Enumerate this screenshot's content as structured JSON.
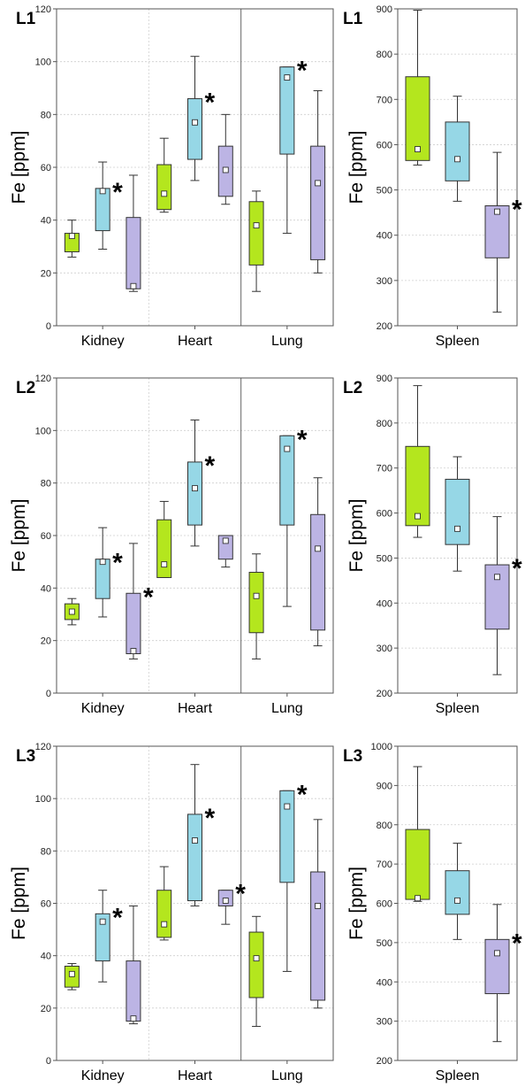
{
  "colors": {
    "green": "#b4e61e",
    "blue": "#96d7e6",
    "purple": "#bcb4e4"
  },
  "chart_data": [
    {
      "panel": "L1",
      "type": "box",
      "ylabel": "Fe [ppm]",
      "ylim": [
        0,
        120
      ],
      "yticks": [
        "0",
        "20",
        "40",
        "60",
        "80",
        "100",
        "120"
      ],
      "categories": [
        "Kidney",
        "Heart",
        "Lung"
      ],
      "grid": true,
      "boxes": [
        {
          "category": "Kidney",
          "color": "green",
          "min": 26,
          "q1": 28,
          "median": 34,
          "q3": 35,
          "max": 40,
          "star": false
        },
        {
          "category": "Kidney",
          "color": "blue",
          "min": 29,
          "q1": 36,
          "median": 51,
          "q3": 52,
          "max": 62,
          "star": true
        },
        {
          "category": "Kidney",
          "color": "purple",
          "min": 13,
          "q1": 14,
          "median": 15,
          "q3": 41,
          "max": 57,
          "star": false
        },
        {
          "category": "Heart",
          "color": "green",
          "min": 43,
          "q1": 44,
          "median": 50,
          "q3": 61,
          "max": 71,
          "star": false
        },
        {
          "category": "Heart",
          "color": "blue",
          "min": 55,
          "q1": 63,
          "median": 77,
          "q3": 86,
          "max": 102,
          "star": true
        },
        {
          "category": "Heart",
          "color": "purple",
          "min": 46,
          "q1": 49,
          "median": 59,
          "q3": 68,
          "max": 80,
          "star": false
        },
        {
          "category": "Lung",
          "color": "green",
          "min": 13,
          "q1": 23,
          "median": 38,
          "q3": 47,
          "max": 51,
          "star": false
        },
        {
          "category": "Lung",
          "color": "blue",
          "min": 35,
          "q1": 65,
          "median": 94,
          "q3": 98,
          "max": 98,
          "star": true
        },
        {
          "category": "Lung",
          "color": "purple",
          "min": 20,
          "q1": 25,
          "median": 54,
          "q3": 68,
          "max": 89,
          "star": false
        }
      ]
    },
    {
      "panel": "L1",
      "type": "box",
      "ylabel": "Fe [ppm]",
      "ylim": [
        200,
        900
      ],
      "yticks": [
        "200",
        "300",
        "400",
        "500",
        "600",
        "700",
        "800",
        "900"
      ],
      "categories": [
        "Spleen"
      ],
      "grid": true,
      "boxes": [
        {
          "category": "Spleen",
          "color": "green",
          "min": 555,
          "q1": 565,
          "median": 590,
          "q3": 750,
          "max": 897,
          "star": false
        },
        {
          "category": "Spleen",
          "color": "blue",
          "min": 475,
          "q1": 520,
          "median": 568,
          "q3": 650,
          "max": 707,
          "star": false
        },
        {
          "category": "Spleen",
          "color": "purple",
          "min": 230,
          "q1": 350,
          "median": 452,
          "q3": 465,
          "max": 583,
          "star": true
        }
      ]
    },
    {
      "panel": "L2",
      "type": "box",
      "ylabel": "Fe [ppm]",
      "ylim": [
        0,
        120
      ],
      "yticks": [
        "0",
        "20",
        "40",
        "60",
        "80",
        "100",
        "120"
      ],
      "categories": [
        "Kidney",
        "Heart",
        "Lung"
      ],
      "grid": true,
      "boxes": [
        {
          "category": "Kidney",
          "color": "green",
          "min": 26,
          "q1": 28,
          "median": 31,
          "q3": 34,
          "max": 36,
          "star": false
        },
        {
          "category": "Kidney",
          "color": "blue",
          "min": 29,
          "q1": 36,
          "median": 50,
          "q3": 51,
          "max": 63,
          "star": true
        },
        {
          "category": "Kidney",
          "color": "purple",
          "min": 13,
          "q1": 15,
          "median": 16,
          "q3": 38,
          "max": 57,
          "star": true
        },
        {
          "category": "Heart",
          "color": "green",
          "min": 44,
          "q1": 44,
          "median": 49,
          "q3": 66,
          "max": 73,
          "star": false
        },
        {
          "category": "Heart",
          "color": "blue",
          "min": 56,
          "q1": 64,
          "median": 78,
          "q3": 88,
          "max": 104,
          "star": true
        },
        {
          "category": "Heart",
          "color": "purple",
          "min": 48,
          "q1": 51,
          "median": 58,
          "q3": 60,
          "max": 60,
          "star": false
        },
        {
          "category": "Lung",
          "color": "green",
          "min": 13,
          "q1": 23,
          "median": 37,
          "q3": 46,
          "max": 53,
          "star": false
        },
        {
          "category": "Lung",
          "color": "blue",
          "min": 33,
          "q1": 64,
          "median": 93,
          "q3": 98,
          "max": 98,
          "star": true
        },
        {
          "category": "Lung",
          "color": "purple",
          "min": 18,
          "q1": 24,
          "median": 55,
          "q3": 68,
          "max": 82,
          "star": false
        }
      ]
    },
    {
      "panel": "L2",
      "type": "box",
      "ylabel": "Fe [ppm]",
      "ylim": [
        200,
        900
      ],
      "yticks": [
        "200",
        "300",
        "400",
        "500",
        "600",
        "700",
        "800",
        "900"
      ],
      "categories": [
        "Spleen"
      ],
      "grid": true,
      "boxes": [
        {
          "category": "Spleen",
          "color": "green",
          "min": 546,
          "q1": 572,
          "median": 593,
          "q3": 748,
          "max": 883,
          "star": false
        },
        {
          "category": "Spleen",
          "color": "blue",
          "min": 471,
          "q1": 530,
          "median": 565,
          "q3": 675,
          "max": 725,
          "star": false
        },
        {
          "category": "Spleen",
          "color": "purple",
          "min": 241,
          "q1": 342,
          "median": 458,
          "q3": 485,
          "max": 592,
          "star": true
        }
      ]
    },
    {
      "panel": "L3",
      "type": "box",
      "ylabel": "Fe [ppm]",
      "ylim": [
        0,
        120
      ],
      "yticks": [
        "0",
        "20",
        "40",
        "60",
        "80",
        "100",
        "120"
      ],
      "categories": [
        "Kidney",
        "Heart",
        "Lung"
      ],
      "grid": true,
      "boxes": [
        {
          "category": "Kidney",
          "color": "green",
          "min": 27,
          "q1": 28,
          "median": 33,
          "q3": 36,
          "max": 37,
          "star": false
        },
        {
          "category": "Kidney",
          "color": "blue",
          "min": 30,
          "q1": 38,
          "median": 53,
          "q3": 56,
          "max": 65,
          "star": true
        },
        {
          "category": "Kidney",
          "color": "purple",
          "min": 14,
          "q1": 15,
          "median": 16,
          "q3": 38,
          "max": 59,
          "star": false
        },
        {
          "category": "Heart",
          "color": "green",
          "min": 46,
          "q1": 47,
          "median": 52,
          "q3": 65,
          "max": 74,
          "star": false
        },
        {
          "category": "Heart",
          "color": "blue",
          "min": 59,
          "q1": 61,
          "median": 84,
          "q3": 94,
          "max": 113,
          "star": true
        },
        {
          "category": "Heart",
          "color": "purple",
          "min": 52,
          "q1": 59,
          "median": 61,
          "q3": 65,
          "max": 65,
          "star": true
        },
        {
          "category": "Lung",
          "color": "green",
          "min": 13,
          "q1": 24,
          "median": 39,
          "q3": 49,
          "max": 55,
          "star": false
        },
        {
          "category": "Lung",
          "color": "blue",
          "min": 34,
          "q1": 68,
          "median": 97,
          "q3": 103,
          "max": 103,
          "star": true
        },
        {
          "category": "Lung",
          "color": "purple",
          "min": 20,
          "q1": 23,
          "median": 59,
          "q3": 72,
          "max": 92,
          "star": false
        }
      ]
    },
    {
      "panel": "L3",
      "type": "box",
      "ylabel": "Fe [ppm]",
      "ylim": [
        200,
        1000
      ],
      "yticks": [
        "200",
        "300",
        "400",
        "500",
        "600",
        "700",
        "800",
        "900",
        "1000"
      ],
      "categories": [
        "Spleen"
      ],
      "grid": true,
      "boxes": [
        {
          "category": "Spleen",
          "color": "green",
          "min": 605,
          "q1": 610,
          "median": 613,
          "q3": 788,
          "max": 948,
          "star": false
        },
        {
          "category": "Spleen",
          "color": "blue",
          "min": 508,
          "q1": 572,
          "median": 607,
          "q3": 683,
          "max": 753,
          "star": false
        },
        {
          "category": "Spleen",
          "color": "purple",
          "min": 248,
          "q1": 370,
          "median": 473,
          "q3": 508,
          "max": 597,
          "star": true
        }
      ]
    }
  ],
  "star_text": "*"
}
